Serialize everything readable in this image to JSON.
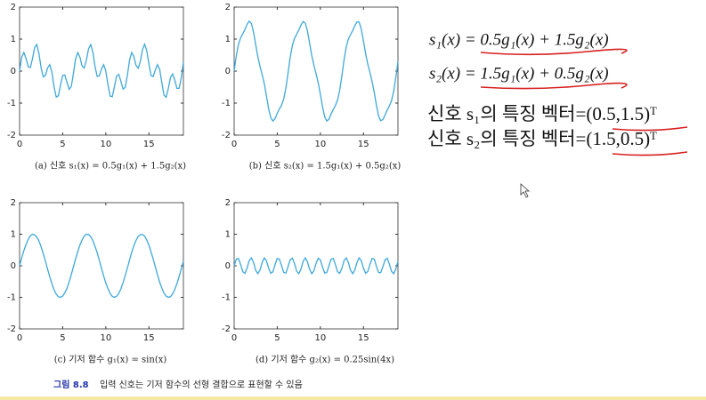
{
  "chart_data": [
    {
      "type": "line",
      "caption": "(a) 신호 s₁(x) = 0.5g₁(x) + 1.5g₂(x)",
      "color": "#3ea8da",
      "x": [
        0,
        0.25,
        0.5,
        0.75,
        1,
        1.25,
        1.5,
        1.75,
        2,
        2.25,
        2.5,
        2.75,
        3,
        3.25,
        3.5,
        3.75,
        4,
        4.25,
        4.5,
        4.75,
        5,
        5.25,
        5.5,
        5.75,
        6,
        6.25,
        6.5,
        6.75,
        7,
        7.25,
        7.5,
        7.75,
        8,
        8.25,
        8.5,
        8.75,
        9,
        9.25,
        9.5,
        9.75,
        10,
        10.25,
        10.5,
        10.75,
        11,
        11.25,
        11.5,
        11.75,
        12,
        12.25,
        12.5,
        12.75,
        13,
        13.25,
        13.5,
        13.75,
        14,
        14.25,
        14.5,
        14.75,
        15,
        15.25,
        15.5,
        15.75,
        16,
        16.25,
        16.5,
        16.75,
        17,
        17.25,
        17.5,
        17.75,
        18,
        18.25,
        18.5,
        18.75,
        19
      ],
      "values": [
        0,
        0.44,
        0.58,
        0.39,
        0.14,
        0.11,
        0.39,
        0.74,
        0.83,
        0.54,
        0.1,
        -0.18,
        -0.13,
        0.1,
        0.2,
        -0.04,
        -0.49,
        -0.81,
        -0.77,
        -0.44,
        -0.14,
        -0.12,
        -0.36,
        -0.57,
        -0.48,
        -0.07,
        0.39,
        0.58,
        0.43,
        0.16,
        0.1,
        0.35,
        0.7,
        0.83,
        0.6,
        0.15,
        -0.17,
        -0.15,
        0.07,
        0.2,
        0.01,
        -0.43,
        -0.78,
        -0.8,
        -0.49,
        -0.16,
        -0.1,
        -0.32,
        -0.56,
        -0.51,
        -0.13,
        0.34,
        0.58,
        0.46,
        0.19,
        0.09,
        0.3,
        0.66,
        0.84,
        0.65,
        0.21,
        -0.14,
        -0.17,
        0.04,
        0.2,
        0.05,
        -0.37,
        -0.75,
        -0.82,
        -0.54,
        -0.2,
        -0.09,
        -0.28,
        -0.54,
        -0.54,
        -0.2,
        0.29
      ],
      "xlim": [
        0,
        19
      ],
      "ylim": [
        -2,
        2
      ],
      "xticks": [
        0,
        5,
        10,
        15
      ],
      "yticks": [
        -2,
        -1,
        0,
        1,
        2
      ]
    },
    {
      "type": "line",
      "caption": "(b) 신호 s₂(x) = 1.5g₁(x) + 0.5g₂(x)",
      "color": "#3ea8da",
      "x": [
        0,
        0.25,
        0.5,
        0.75,
        1,
        1.25,
        1.5,
        1.75,
        2,
        2.25,
        2.5,
        2.75,
        3,
        3.25,
        3.5,
        3.75,
        4,
        4.25,
        4.5,
        4.75,
        5,
        5.25,
        5.5,
        5.75,
        6,
        6.25,
        6.5,
        6.75,
        7,
        7.25,
        7.5,
        7.75,
        8,
        8.25,
        8.5,
        8.75,
        9,
        9.25,
        9.5,
        9.75,
        10,
        10.25,
        10.5,
        10.75,
        11,
        11.25,
        11.5,
        11.75,
        12,
        12.25,
        12.5,
        12.75,
        13,
        13.25,
        13.5,
        13.75,
        14,
        14.25,
        14.5,
        14.75,
        15,
        15.25,
        15.5,
        15.75,
        16,
        16.25,
        16.5,
        16.75,
        17,
        17.25,
        17.5,
        17.75,
        18,
        18.25,
        18.5,
        18.75,
        19
      ],
      "values": [
        0,
        0.48,
        0.83,
        1.04,
        1.17,
        1.3,
        1.46,
        1.56,
        1.49,
        1.22,
        0.83,
        0.45,
        0.14,
        -0.11,
        -0.4,
        -0.78,
        -1.17,
        -1.46,
        -1.56,
        -1.48,
        -1.32,
        -1.18,
        -1.06,
        -0.87,
        -0.53,
        -0.07,
        0.42,
        0.8,
        1.02,
        1.15,
        1.28,
        1.44,
        1.55,
        1.5,
        1.26,
        0.88,
        0.49,
        0.18,
        -0.08,
        -0.36,
        -0.72,
        -1.12,
        -1.43,
        -1.56,
        -1.5,
        -1.34,
        -1.2,
        -1.07,
        -0.9,
        -0.59,
        -0.13,
        0.36,
        0.75,
        1.0,
        1.14,
        1.27,
        1.42,
        1.54,
        1.53,
        1.31,
        0.94,
        0.54,
        0.22,
        -0.04,
        -0.32,
        -0.67,
        -1.07,
        -1.4,
        -1.55,
        -1.51,
        -1.37,
        -1.22,
        -1.09,
        -0.93,
        -0.63,
        -0.2,
        0.3
      ],
      "xlim": [
        0,
        19
      ],
      "ylim": [
        -2,
        2
      ],
      "xticks": [
        0,
        5,
        10,
        15
      ],
      "yticks": [
        -2,
        -1,
        0,
        1,
        2
      ]
    },
    {
      "type": "line",
      "caption": "(c) 기저 함수 g₁(x) = sin(x)",
      "color": "#3ea8da",
      "x": [
        0,
        0.25,
        0.5,
        0.75,
        1,
        1.25,
        1.5,
        1.75,
        2,
        2.25,
        2.5,
        2.75,
        3,
        3.25,
        3.5,
        3.75,
        4,
        4.25,
        4.5,
        4.75,
        5,
        5.25,
        5.5,
        5.75,
        6,
        6.25,
        6.5,
        6.75,
        7,
        7.25,
        7.5,
        7.75,
        8,
        8.25,
        8.5,
        8.75,
        9,
        9.25,
        9.5,
        9.75,
        10,
        10.25,
        10.5,
        10.75,
        11,
        11.25,
        11.5,
        11.75,
        12,
        12.25,
        12.5,
        12.75,
        13,
        13.25,
        13.5,
        13.75,
        14,
        14.25,
        14.5,
        14.75,
        15,
        15.25,
        15.5,
        15.75,
        16,
        16.25,
        16.5,
        16.75,
        17,
        17.25,
        17.5,
        17.75,
        18,
        18.25,
        18.5,
        18.75,
        19
      ],
      "values": [
        0,
        0.25,
        0.48,
        0.68,
        0.84,
        0.95,
        1.0,
        0.98,
        0.91,
        0.78,
        0.6,
        0.38,
        0.14,
        -0.11,
        -0.35,
        -0.57,
        -0.76,
        -0.9,
        -0.98,
        -1.0,
        -0.96,
        -0.86,
        -0.71,
        -0.51,
        -0.28,
        -0.03,
        0.22,
        0.45,
        0.66,
        0.82,
        0.94,
        1.0,
        0.99,
        0.92,
        0.8,
        0.62,
        0.41,
        0.17,
        -0.08,
        -0.32,
        -0.54,
        -0.73,
        -0.88,
        -0.97,
        -1.0,
        -0.97,
        -0.88,
        -0.73,
        -0.54,
        -0.31,
        -0.07,
        0.18,
        0.42,
        0.63,
        0.8,
        0.93,
        0.99,
        0.99,
        0.94,
        0.82,
        0.65,
        0.44,
        0.21,
        -0.04,
        -0.29,
        -0.52,
        -0.71,
        -0.87,
        -0.96,
        -1.0,
        -0.98,
        -0.89,
        -0.75,
        -0.57,
        -0.34,
        -0.1,
        0.15
      ],
      "xlim": [
        0,
        19
      ],
      "ylim": [
        -2,
        2
      ],
      "xticks": [
        0,
        5,
        10,
        15
      ],
      "yticks": [
        -2,
        -1,
        0,
        1,
        2
      ]
    },
    {
      "type": "line",
      "caption": "(d) 기저 함수 g₂(x) = 0.25sin(4x)",
      "color": "#3ea8da",
      "x": [
        0,
        0.25,
        0.5,
        0.75,
        1,
        1.25,
        1.5,
        1.75,
        2,
        2.25,
        2.5,
        2.75,
        3,
        3.25,
        3.5,
        3.75,
        4,
        4.25,
        4.5,
        4.75,
        5,
        5.25,
        5.5,
        5.75,
        6,
        6.25,
        6.5,
        6.75,
        7,
        7.25,
        7.5,
        7.75,
        8,
        8.25,
        8.5,
        8.75,
        9,
        9.25,
        9.5,
        9.75,
        10,
        10.25,
        10.5,
        10.75,
        11,
        11.25,
        11.5,
        11.75,
        12,
        12.25,
        12.5,
        12.75,
        13,
        13.25,
        13.5,
        13.75,
        14,
        14.25,
        14.5,
        14.75,
        15,
        15.25,
        15.5,
        15.75,
        16,
        16.25,
        16.5,
        16.75,
        17,
        17.25,
        17.5,
        17.75,
        18,
        18.25,
        18.5,
        18.75,
        19
      ],
      "values": [
        0,
        0.21,
        0.23,
        0.04,
        -0.19,
        -0.24,
        -0.07,
        0.16,
        0.25,
        0.1,
        -0.14,
        -0.25,
        -0.13,
        0.11,
        0.25,
        0.16,
        -0.07,
        -0.24,
        -0.19,
        0.04,
        0.23,
        0.21,
        0,
        -0.21,
        -0.23,
        -0.03,
        0.19,
        0.24,
        0.07,
        -0.17,
        -0.25,
        -0.1,
        0.14,
        0.25,
        0.13,
        -0.11,
        -0.25,
        -0.16,
        0.07,
        0.24,
        0.19,
        -0.04,
        -0.23,
        -0.21,
        0,
        0.21,
        0.23,
        0.03,
        -0.19,
        -0.24,
        -0.07,
        0.17,
        0.25,
        0.1,
        -0.14,
        -0.25,
        -0.13,
        0.11,
        0.25,
        0.16,
        -0.08,
        -0.24,
        -0.18,
        0.04,
        0.23,
        0.21,
        -0.01,
        -0.21,
        -0.22,
        -0.03,
        0.19,
        0.24,
        0.06,
        -0.17,
        -0.25,
        -0.1,
        0.14
      ],
      "xlim": [
        0,
        19
      ],
      "ylim": [
        -2,
        2
      ],
      "xticks": [
        0,
        5,
        10,
        15
      ],
      "yticks": [
        -2,
        -1,
        0,
        1,
        2
      ]
    }
  ],
  "equations": [
    "s₁(x) = 0.5g₁(x) + 1.5g₂(x)",
    "s₂(x) = 1.5g₁(x) + 0.5g₂(x)"
  ],
  "feature_vectors": [
    "신호 s₁의 특징 벡터=(0.5,1.5)ᵀ",
    "신호 s₂의 특징 벡터=(1.5,0.5)ᵀ"
  ],
  "figure_caption": {
    "label": "그림 8.8",
    "text": "입력 신호는 기저 함수의 선형 결합으로 표현할 수 있음"
  }
}
